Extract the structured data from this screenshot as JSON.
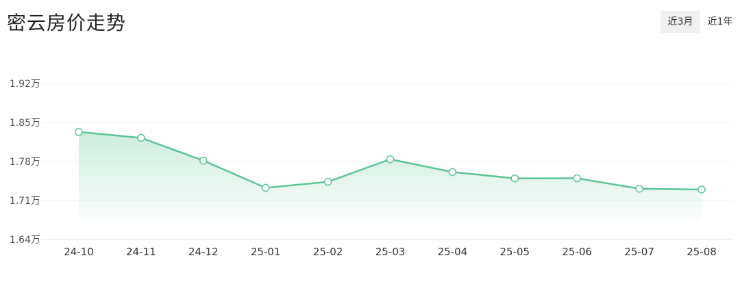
{
  "title": "密云房价走势",
  "range_tabs": [
    {
      "label": "近3月",
      "active": true
    },
    {
      "label": "近1年",
      "active": false
    }
  ],
  "chart_data": {
    "type": "area",
    "title": "密云房价走势",
    "categories": [
      "24-10",
      "24-11",
      "24-12",
      "25-01",
      "25-02",
      "25-03",
      "25-04",
      "25-05",
      "25-06",
      "25-07",
      "25-08"
    ],
    "values": [
      18331,
      18224,
      17817,
      17328,
      17436,
      17840,
      17611,
      17498,
      17499,
      17312,
      17297
    ],
    "yticks": [
      16400,
      17100,
      17800,
      18500,
      19200
    ],
    "ytick_labels": [
      "1.64万",
      "1.71万",
      "1.78万",
      "1.85万",
      "1.92万"
    ],
    "ylim": [
      16400,
      19200
    ],
    "color": "#5cc595",
    "grid": true
  }
}
